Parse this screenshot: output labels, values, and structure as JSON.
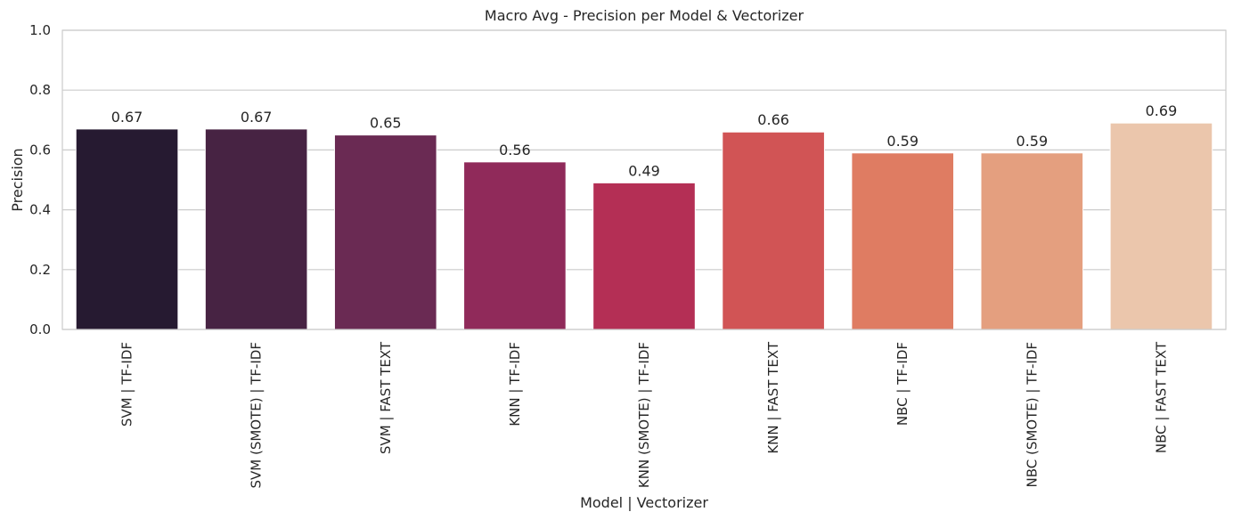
{
  "chart_data": {
    "type": "bar",
    "title": "Macro Avg - Precision per Model & Vectorizer",
    "xlabel": "Model | Vectorizer",
    "ylabel": "Precision",
    "ylim": [
      0,
      1.0
    ],
    "yticks": [
      "0.0",
      "0.2",
      "0.4",
      "0.6",
      "0.8",
      "1.0"
    ],
    "grid": true,
    "categories": [
      "SVM | TF-IDF",
      "SVM (SMOTE) | TF-IDF",
      "SVM | FAST TEXT",
      "KNN | TF-IDF",
      "KNN (SMOTE) | TF-IDF",
      "KNN | FAST TEXT",
      "NBC | TF-IDF",
      "NBC (SMOTE) | TF-IDF",
      "NBC | FAST TEXT"
    ],
    "values": [
      0.67,
      0.67,
      0.65,
      0.56,
      0.49,
      0.66,
      0.59,
      0.59,
      0.69
    ],
    "data_labels": [
      "0.67",
      "0.67",
      "0.65",
      "0.56",
      "0.49",
      "0.66",
      "0.59",
      "0.59",
      "0.69"
    ],
    "colors": [
      "#261a31",
      "#472343",
      "#6a2a53",
      "#902a5a",
      "#b42f55",
      "#d15455",
      "#df7c62",
      "#e49f7f",
      "#ebc6ac"
    ]
  }
}
